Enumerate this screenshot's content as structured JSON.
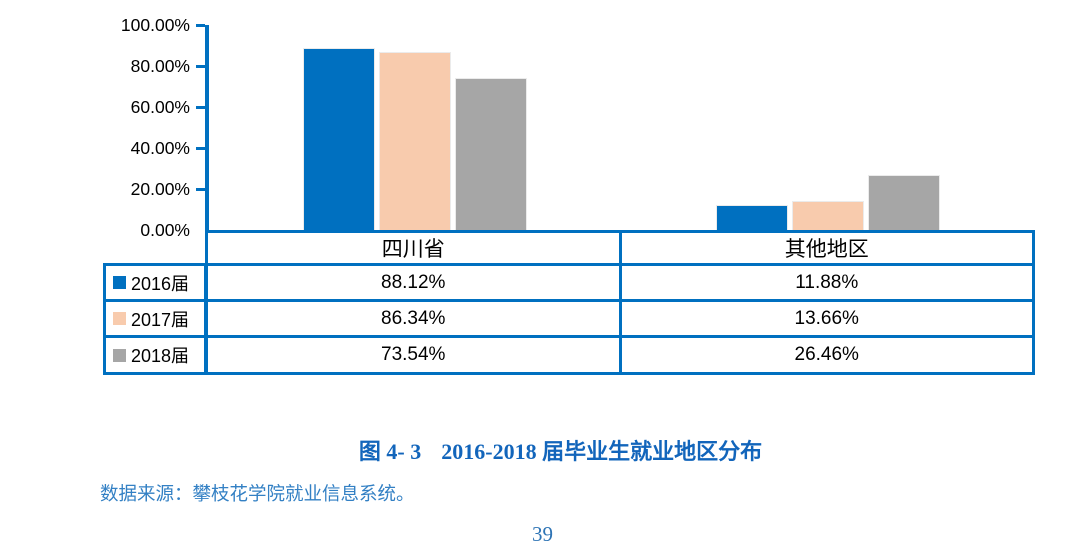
{
  "theme": {
    "accent_blue": "#0070C0",
    "caption_blue": "#1265BB",
    "text_blue": "#2E74B5"
  },
  "chart_data": {
    "type": "bar",
    "categories": [
      "四川省",
      "其他地区"
    ],
    "series": [
      {
        "name": "2016届",
        "color": "#0070C0",
        "values": [
          88.12,
          11.88
        ]
      },
      {
        "name": "2017届",
        "color": "#F8CBAD",
        "values": [
          86.34,
          13.66
        ]
      },
      {
        "name": "2018届",
        "color": "#A6A6A6",
        "values": [
          73.54,
          26.46
        ]
      }
    ],
    "y_ticks": [
      "100.00%",
      "80.00%",
      "60.00%",
      "40.00%",
      "20.00%",
      "0.00%"
    ],
    "ylim": [
      0,
      100
    ],
    "grid": false,
    "legend_position": "left-of-table",
    "title": "2016-2018 届毕业生就业地区分布"
  },
  "table": {
    "border_color": "#0070C0",
    "columns": [
      "四川省",
      "其他地区"
    ],
    "rows": [
      {
        "legend": "2016届",
        "swatch": "#0070C0",
        "values": [
          "88.12%",
          "11.88%"
        ]
      },
      {
        "legend": "2017届",
        "swatch": "#F8CBAD",
        "values": [
          "86.34%",
          "13.66%"
        ]
      },
      {
        "legend": "2018届",
        "swatch": "#A6A6A6",
        "values": [
          "73.54%",
          "26.46%"
        ]
      }
    ]
  },
  "caption": {
    "label": "图 4- 3",
    "title": "2016-2018 届毕业生就业地区分布"
  },
  "source": {
    "text": "数据来源：攀枝花学院就业信息系统。"
  },
  "page_number": "39"
}
